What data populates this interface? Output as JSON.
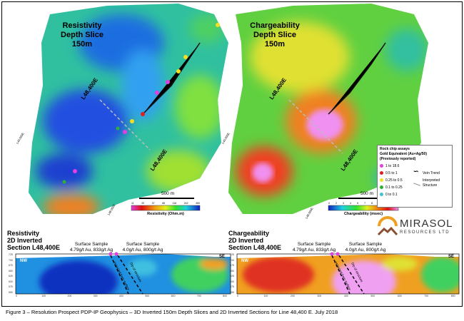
{
  "left_map": {
    "title_line1": "Resistivity",
    "title_line2": "Depth Slice",
    "title_line3": "150m",
    "line_label": "L48,400E",
    "line_label_2": "L48,400E",
    "grid_labels": [
      "L49,000E",
      "L48,000E"
    ],
    "scale_label": "500 m",
    "colorbar_ticks": [
      "11",
      "20",
      "37",
      "68",
      "116",
      "242",
      "450"
    ],
    "colorbar_title": "Resistivity (Ohm.m)"
  },
  "right_map": {
    "title_line1": "Chargeability",
    "title_line2": "Depth Slice",
    "title_line3": "150m",
    "line_label": "L48,400E",
    "line_label_2": "L48,400E",
    "grid_labels": [
      "L49,000E",
      "L48,000E"
    ],
    "scale_label": "500 m",
    "colorbar_ticks": [
      "0",
      "2",
      "3",
      "4",
      "5",
      "7",
      "8",
      "10",
      "12",
      "13"
    ],
    "colorbar_title": "Chargeability (msec)"
  },
  "legend": {
    "title1": "Rock chip assays",
    "title2": "Gold Equivalent (Au+Ag/50)",
    "title3": "(Previously reported)",
    "items": [
      {
        "label": "1 to 18.6",
        "color": "#e040e0"
      },
      {
        "label": "0.5 to 1",
        "color": "#e02020"
      },
      {
        "label": "0.25 to 0.5",
        "color": "#f0e020"
      },
      {
        "label": "0.1 to 0.25",
        "color": "#30b030"
      },
      {
        "label": "0   to 0.1",
        "color": "#40c0d0"
      }
    ],
    "vein_trend": "Vein Trend",
    "structure": "Interpreted Structure"
  },
  "logo": {
    "name": "MIRASOL",
    "sub": "RESOURCES LTD"
  },
  "left_section": {
    "title1": "Resistivity",
    "title2": "2D Inverted",
    "title3": "Section L48,400E",
    "sample1_a": "Surface Sample",
    "sample1_b": "4.79g/t Au, 833g/t Ag",
    "sample2_a": "Surface Sample",
    "sample2_b": "4.0g/t Au, 800g/t Ag",
    "nw": "NW",
    "se": "SE",
    "dip": "Dip of structure",
    "proj": "projected from surface"
  },
  "right_section": {
    "title1": "Chargeability",
    "title2": "2D Inverted",
    "title3": "Section L48,400E",
    "sample1_a": "Surface Sample",
    "sample1_b": "4.79g/t Au, 833g/t Ag",
    "sample2_a": "Surface Sample",
    "sample2_b": "4.0g/t Au, 800g/t Ag",
    "nw": "NW",
    "se": "SE",
    "dip": "Dip of structure",
    "proj": "projected from surface"
  },
  "section_y_ticks": [
    "725",
    "700",
    "675",
    "650",
    "625",
    "600",
    "575",
    "550"
  ],
  "section_x_ticks": [
    "0",
    "100",
    "200",
    "300",
    "400",
    "500",
    "600",
    "700",
    "800"
  ],
  "caption": "Figure 3 – Resolution Prospect PDP-IP Geophysics – 3D Inverted 150m Depth Slices and 2D Inverted Sections for Line 48,400 E. July 2018"
}
